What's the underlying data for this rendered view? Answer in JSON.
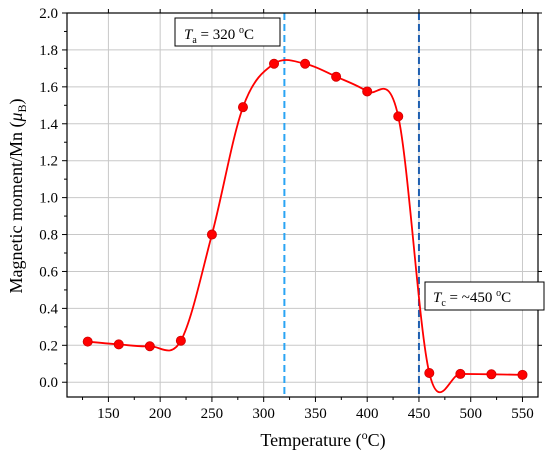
{
  "chart_data": {
    "type": "line",
    "xlabel": {
      "main": "Temperature (",
      "sup": "o",
      "tail": "C)"
    },
    "ylabel": {
      "main": "Magnetic moment/Mn (",
      "italic": "μ",
      "sub": "B",
      "tail": ")"
    },
    "xlim": [
      110,
      565
    ],
    "ylim": [
      -0.08,
      2.0
    ],
    "xticks": [
      150,
      200,
      250,
      300,
      350,
      400,
      450,
      500,
      550
    ],
    "yticks": [
      0.0,
      0.2,
      0.4,
      0.6,
      0.8,
      1.0,
      1.2,
      1.4,
      1.6,
      1.8,
      2.0
    ],
    "xtick_labels": [
      "150",
      "200",
      "250",
      "300",
      "350",
      "400",
      "450",
      "500",
      "550"
    ],
    "ytick_labels": [
      "0.0",
      "0.2",
      "0.4",
      "0.6",
      "0.8",
      "1.0",
      "1.2",
      "1.4",
      "1.6",
      "1.8",
      "2.0"
    ],
    "grid": true,
    "series": [
      {
        "x": [
          130,
          160,
          190,
          220,
          250,
          280,
          310,
          340,
          370,
          400,
          430,
          460,
          490,
          520,
          550
        ],
        "values": [
          0.22,
          0.205,
          0.195,
          0.225,
          0.8,
          1.49,
          1.725,
          1.725,
          1.655,
          1.575,
          1.44,
          0.05,
          0.045,
          0.043,
          0.04
        ],
        "color": "#ff0000"
      }
    ],
    "vlines": [
      {
        "x": 320,
        "color": "#2aa4f4",
        "style": "dashed"
      },
      {
        "x": 450,
        "color": "#1f5fb0",
        "style": "dashed"
      }
    ],
    "annotations": [
      {
        "id": "ta",
        "italic": "T",
        "sub": "a",
        "rest": " = 320 ",
        "sup": "o",
        "tail": "C"
      },
      {
        "id": "tc",
        "italic": "T",
        "sub": "c",
        "rest": " = ~450 ",
        "sup": "o",
        "tail": "C"
      }
    ],
    "colors": {
      "line": "#ff0000",
      "marker": "#ff0000",
      "grid": "#c8c8c8",
      "axis": "#000000"
    }
  }
}
